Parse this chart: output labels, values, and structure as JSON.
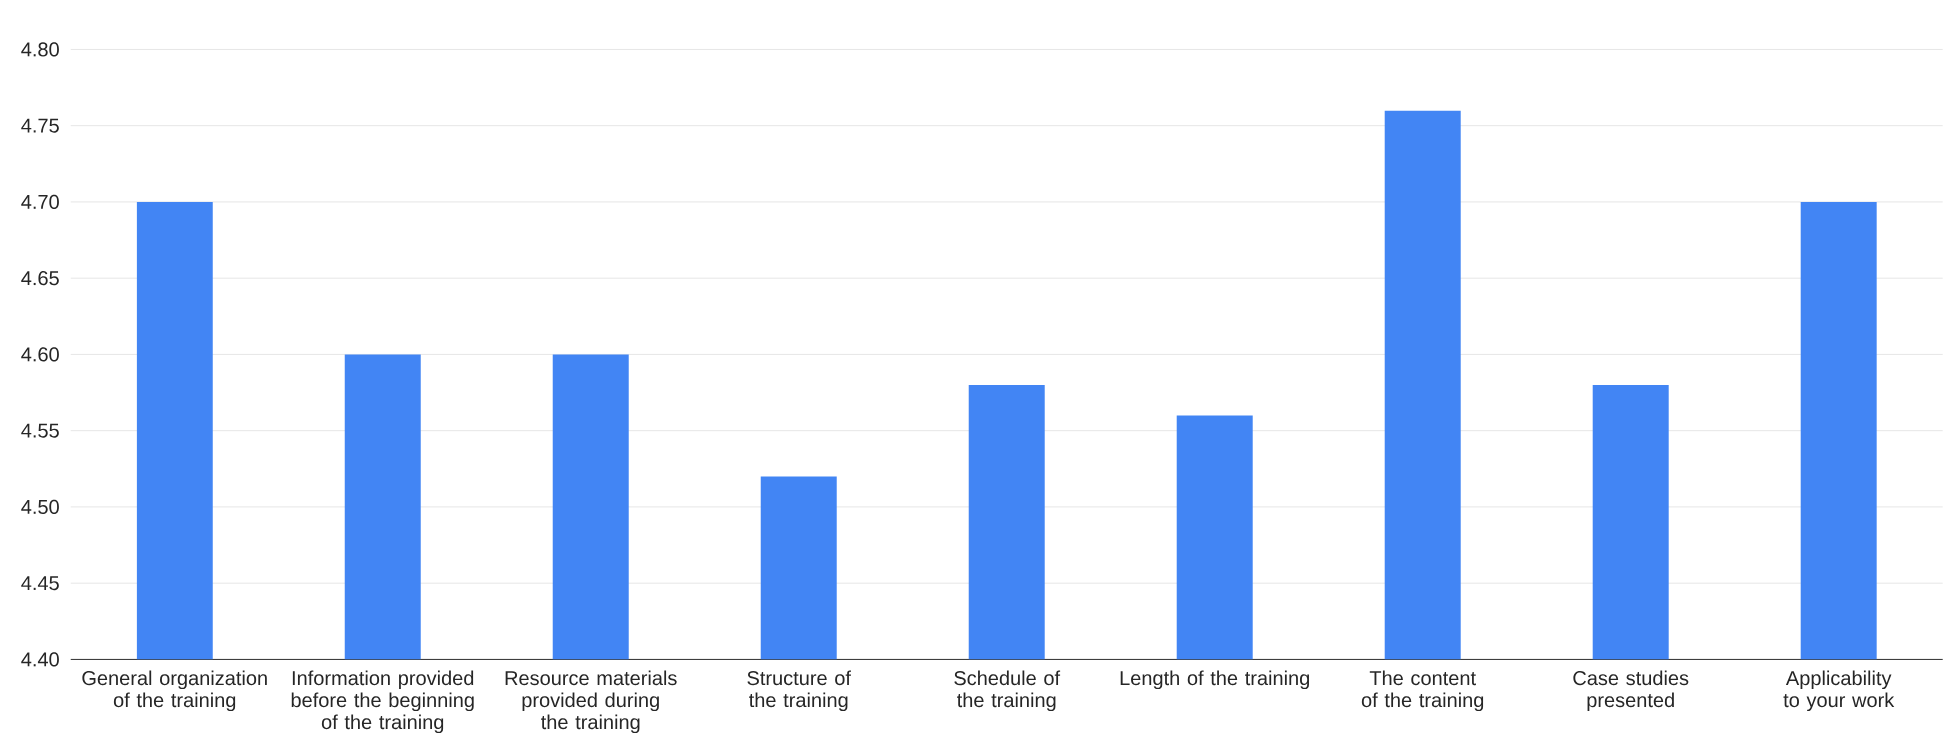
{
  "chart_data": {
    "type": "bar",
    "categories": [
      "General organization of the training",
      "Information provided before the beginning of the training",
      "Resource materials provided during the training",
      "Structure of the training",
      "Schedule of the training",
      "Length of the training",
      "The content of the training",
      "Case studies presented",
      "Applicability to your work"
    ],
    "values": [
      4.7,
      4.6,
      4.6,
      4.52,
      4.58,
      4.56,
      4.76,
      4.58,
      4.7
    ],
    "color": "#4285f4",
    "ylim": [
      4.4,
      4.8
    ],
    "yticks": [
      {
        "value": 4.4,
        "label": "4.40"
      },
      {
        "value": 4.45,
        "label": "4.45"
      },
      {
        "value": 4.5,
        "label": "4.50"
      },
      {
        "value": 4.55,
        "label": "4.55"
      },
      {
        "value": 4.6,
        "label": "4.60"
      },
      {
        "value": 4.65,
        "label": "4.65"
      },
      {
        "value": 4.7,
        "label": "4.70"
      },
      {
        "value": 4.75,
        "label": "4.75"
      },
      {
        "value": 4.8,
        "label": "4.80"
      }
    ],
    "grid": "y"
  }
}
